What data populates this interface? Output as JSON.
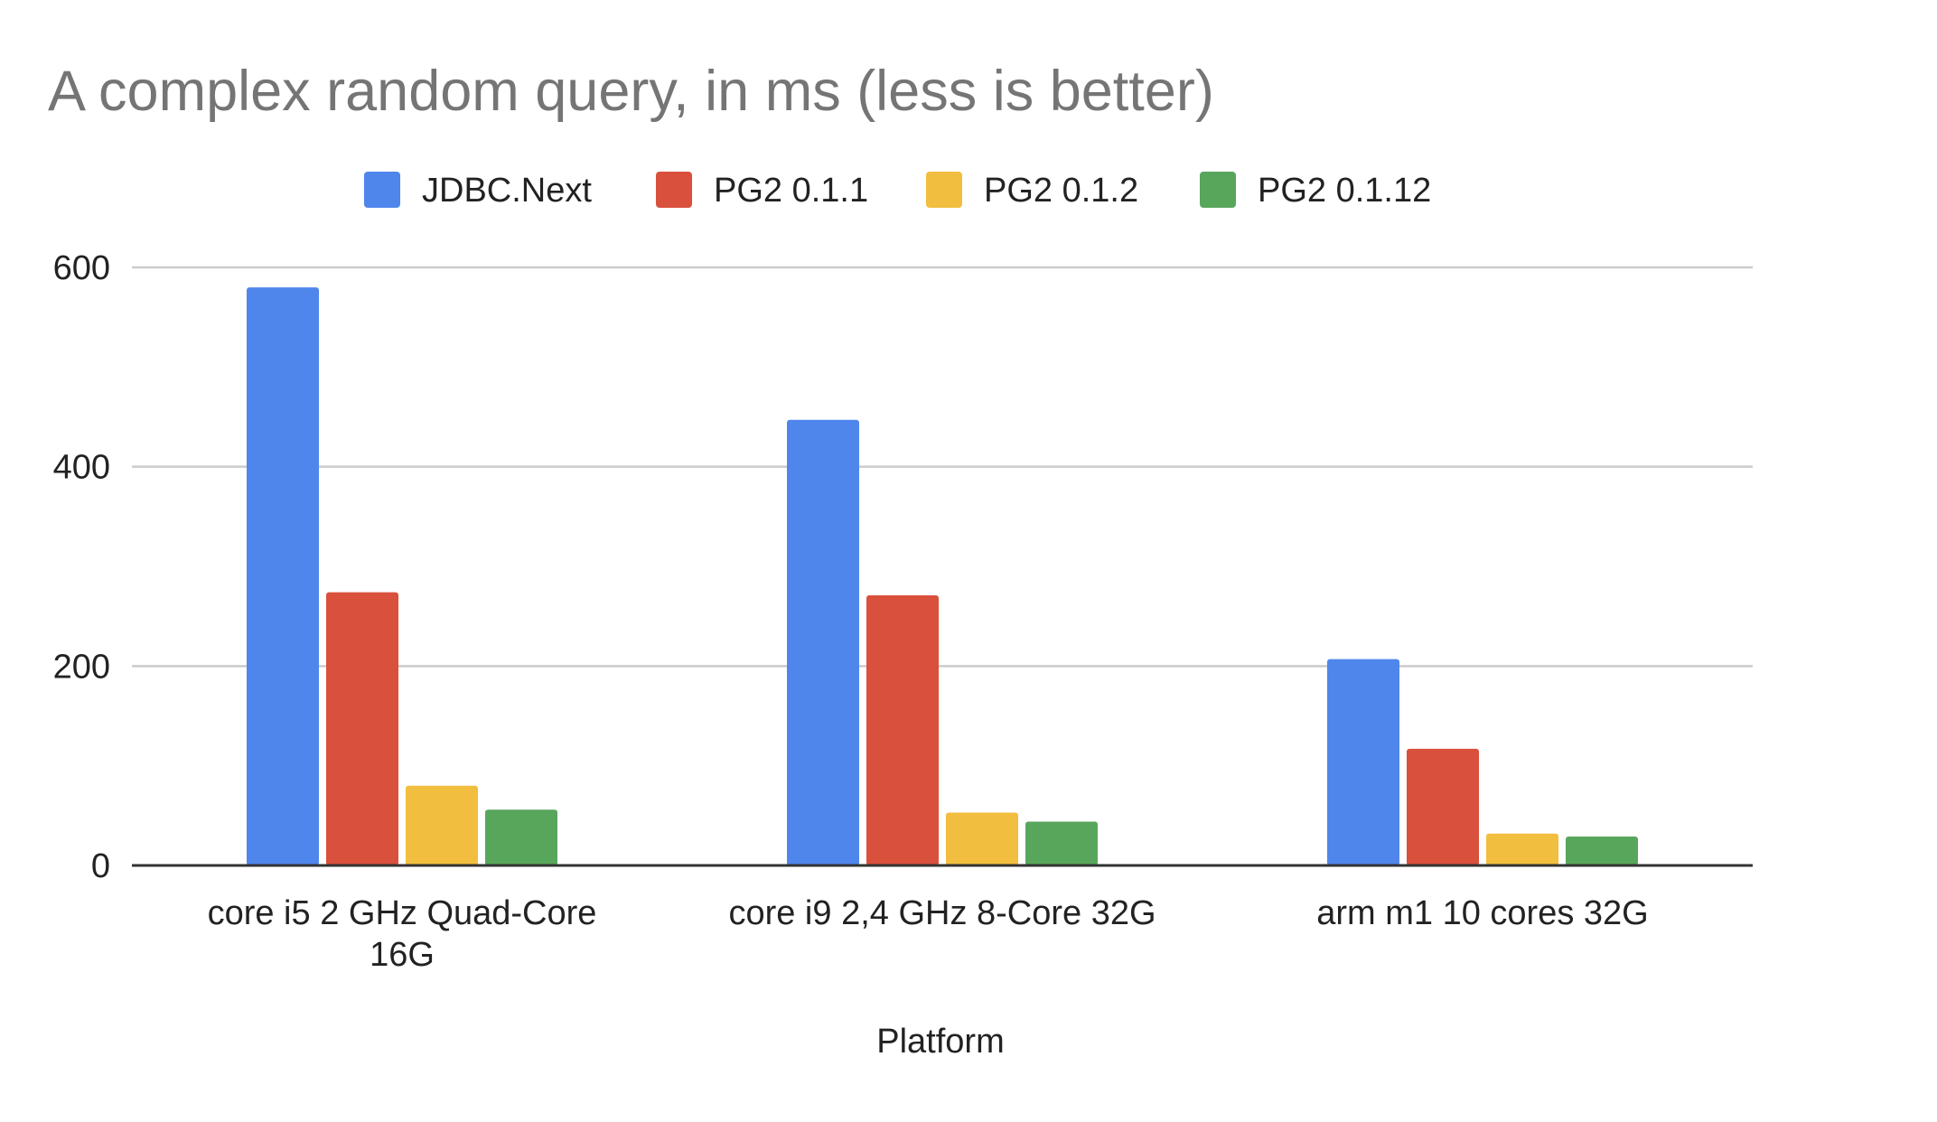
{
  "chart_data": {
    "type": "bar",
    "title": "A complex random query, in ms (less is better)",
    "xlabel": "Platform",
    "ylabel": "",
    "ylim": [
      0,
      600
    ],
    "yticks": [
      0,
      200,
      400,
      600
    ],
    "grid": true,
    "legend_position": "top",
    "categories": [
      [
        "core i5 2 GHz Quad-Core",
        "16G"
      ],
      [
        "core i9 2,4 GHz 8-Core 32G"
      ],
      [
        "arm m1 10 cores 32G"
      ]
    ],
    "series": [
      {
        "name": "JDBC.Next",
        "color": "#4f86ec",
        "values": [
          580,
          447,
          207
        ]
      },
      {
        "name": "PG2 0.1.1",
        "color": "#d9503c",
        "values": [
          274,
          271,
          117
        ]
      },
      {
        "name": "PG2 0.1.2",
        "color": "#f2be3f",
        "values": [
          80,
          53,
          32
        ]
      },
      {
        "name": "PG2 0.1.12",
        "color": "#58a65c",
        "values": [
          56,
          44,
          29
        ]
      }
    ]
  }
}
